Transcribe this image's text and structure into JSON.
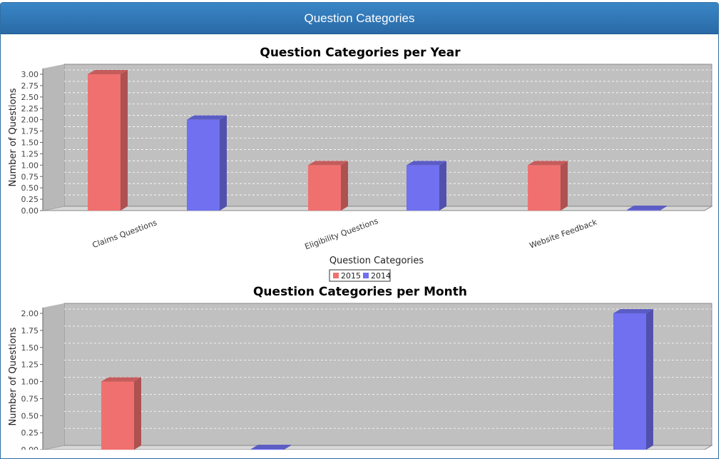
{
  "header": {
    "title": "Question Categories"
  },
  "colors": {
    "series_2015": "#f07070",
    "series_2014": "#7070f0",
    "plot_bg": "#c0c0c0"
  },
  "chart_data": [
    {
      "type": "bar",
      "title": "Question Categories per Year",
      "xlabel": "Question Categories",
      "ylabel": "Number of Questions",
      "categories": [
        "Claims Questions",
        "Eligibility Questions",
        "Website Feedback"
      ],
      "series": [
        {
          "name": "2015",
          "values": [
            3,
            1,
            1
          ]
        },
        {
          "name": "2014",
          "values": [
            2,
            1,
            0
          ]
        }
      ],
      "ylim": [
        0,
        3.0
      ],
      "yticks": [
        "0.00",
        "0.25",
        "0.50",
        "0.75",
        "1.00",
        "1.25",
        "1.50",
        "1.75",
        "2.00",
        "2.25",
        "2.50",
        "2.75",
        "3.00"
      ],
      "legend": "bottom-center",
      "grid": true
    },
    {
      "type": "bar",
      "title": "Question Categories per Month",
      "xlabel": "",
      "ylabel": "Number of Questions",
      "series": [
        {
          "values": [
            1,
            0,
            2
          ]
        }
      ],
      "ylim": [
        0,
        2.0
      ],
      "yticks": [
        "0.00",
        "0.25",
        "0.50",
        "0.75",
        "1.00",
        "1.25",
        "1.50",
        "1.75",
        "2.00"
      ],
      "grid": true
    }
  ]
}
